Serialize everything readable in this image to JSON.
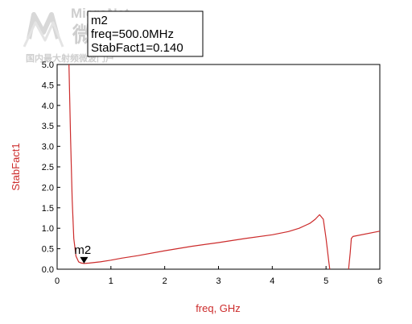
{
  "chart_data": {
    "type": "line",
    "xlabel": "freq, GHz",
    "ylabel": "StabFact1",
    "xlim": [
      0,
      6
    ],
    "ylim": [
      0,
      5
    ],
    "x_ticks": [
      "0",
      "1",
      "2",
      "3",
      "4",
      "5",
      "6"
    ],
    "y_ticks": [
      "0.0",
      "0.5",
      "1.0",
      "1.5",
      "2.0",
      "2.5",
      "3.0",
      "3.5",
      "4.0",
      "4.5",
      "5.0"
    ],
    "grid": false,
    "series": [
      {
        "color": "#cc2b2b",
        "segments": [
          {
            "x": [
              0.22,
              0.25,
              0.28,
              0.31,
              0.35,
              0.4,
              0.45,
              0.5,
              0.6,
              0.8,
              1.0,
              1.2,
              1.5,
              2.0,
              2.5,
              3.0,
              3.5,
              4.0,
              4.3,
              4.5,
              4.7,
              4.8,
              4.88,
              4.95,
              5.0,
              5.05,
              5.07
            ],
            "y": [
              5.0,
              3.2,
              1.7,
              0.75,
              0.32,
              0.18,
              0.15,
              0.14,
              0.15,
              0.18,
              0.22,
              0.27,
              0.33,
              0.45,
              0.56,
              0.65,
              0.75,
              0.84,
              0.92,
              1.0,
              1.12,
              1.22,
              1.33,
              1.22,
              0.75,
              0.2,
              0.0
            ]
          },
          {
            "x": [
              5.42,
              5.45,
              5.47,
              5.5,
              6.0
            ],
            "y": [
              0.0,
              0.4,
              0.75,
              0.8,
              0.93
            ]
          }
        ]
      }
    ],
    "marker": {
      "name": "m2",
      "x": 0.5,
      "y": 0.14,
      "readout": {
        "name": "m2",
        "line1": "freq=500.0MHz",
        "line2": "StabFact1=0.140"
      }
    }
  },
  "logo": {
    "title": "MicroNet",
    "chinese": "微网",
    "subtitle": "国内最大射频微波门户"
  },
  "colors": {
    "trace": "#cc2b2b",
    "axis": "#cc2b2b",
    "frame": "#000000",
    "marker": "#000000"
  }
}
